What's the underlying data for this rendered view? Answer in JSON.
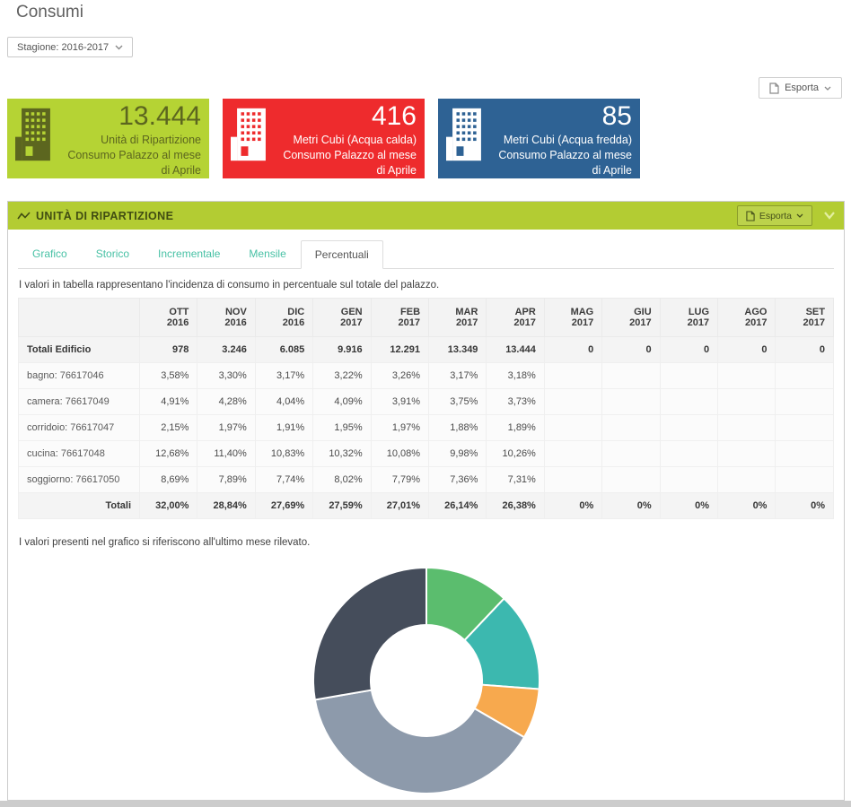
{
  "page": {
    "title": "Consumi"
  },
  "season_filter": {
    "label": "Stagione: 2016-2017"
  },
  "export_top": {
    "label": "Esporta"
  },
  "cards": [
    {
      "value": "13.444",
      "line1": "Unità di Ripartizione",
      "line2": "Consumo Palazzo al mese di Aprile",
      "bg": "#b5d334",
      "fg": "#5c661f",
      "name": "unita-di-ripartizione"
    },
    {
      "value": "416",
      "line1": "Metri Cubi (Acqua calda)",
      "line2": "Consumo Palazzo al mese di Aprile",
      "bg": "#ee2b2d",
      "fg": "#ffffff",
      "name": "metri-cubi-acqua-calda"
    },
    {
      "value": "85",
      "line1": "Metri Cubi (Acqua fredda)",
      "line2": "Consumo Palazzo al mese di Aprile",
      "bg": "#2e6294",
      "fg": "#ffffff",
      "name": "metri-cubi-acqua-fredda"
    }
  ],
  "panel": {
    "title": "UNITÀ DI RIPARTIZIONE",
    "export_label": "Esporta",
    "tabs": [
      {
        "label": "Grafico",
        "active": false
      },
      {
        "label": "Storico",
        "active": false
      },
      {
        "label": "Incrementale",
        "active": false
      },
      {
        "label": "Mensile",
        "active": false
      },
      {
        "label": "Percentuali",
        "active": true
      }
    ],
    "table_note": "I valori in tabella rappresentano l'incidenza di consumo in percentuale sul totale del palazzo.",
    "chart_note": "I valori presenti nel grafico si riferiscono all'ultimo mese rilevato."
  },
  "table": {
    "columns": [
      "",
      "OTT 2016",
      "NOV 2016",
      "DIC 2016",
      "GEN 2017",
      "FEB 2017",
      "MAR 2017",
      "APR 2017",
      "MAG 2017",
      "GIU 2017",
      "LUG 2017",
      "AGO 2017",
      "SET 2017"
    ],
    "rows": [
      {
        "label": "Totali Edificio",
        "bold": true,
        "values": [
          "978",
          "3.246",
          "6.085",
          "9.916",
          "12.291",
          "13.349",
          "13.444",
          "0",
          "0",
          "0",
          "0",
          "0"
        ]
      },
      {
        "label": "bagno: 76617046",
        "bold": false,
        "values": [
          "3,58%",
          "3,30%",
          "3,17%",
          "3,22%",
          "3,26%",
          "3,17%",
          "3,18%",
          "",
          "",
          "",
          "",
          ""
        ]
      },
      {
        "label": "camera: 76617049",
        "bold": false,
        "values": [
          "4,91%",
          "4,28%",
          "4,04%",
          "4,09%",
          "3,91%",
          "3,75%",
          "3,73%",
          "",
          "",
          "",
          "",
          ""
        ]
      },
      {
        "label": "corridoio: 76617047",
        "bold": false,
        "values": [
          "2,15%",
          "1,97%",
          "1,91%",
          "1,95%",
          "1,97%",
          "1,88%",
          "1,89%",
          "",
          "",
          "",
          "",
          ""
        ]
      },
      {
        "label": "cucina: 76617048",
        "bold": false,
        "values": [
          "12,68%",
          "11,40%",
          "10,83%",
          "10,32%",
          "10,08%",
          "9,98%",
          "10,26%",
          "",
          "",
          "",
          "",
          ""
        ]
      },
      {
        "label": "soggiorno: 76617050",
        "bold": false,
        "values": [
          "8,69%",
          "7,89%",
          "7,74%",
          "8,02%",
          "7,79%",
          "7,36%",
          "7,31%",
          "",
          "",
          "",
          "",
          ""
        ]
      },
      {
        "label": "Totali",
        "bold": true,
        "label_right": true,
        "values": [
          "32,00%",
          "28,84%",
          "27,69%",
          "27,59%",
          "27,01%",
          "26,14%",
          "26,38%",
          "0%",
          "0%",
          "0%",
          "0%",
          "0%"
        ]
      }
    ]
  },
  "chart_data": {
    "type": "pie",
    "donut": true,
    "start_angle_deg": 0,
    "direction": "clockwise",
    "segments": [
      {
        "label": "bagno: 76617046",
        "value": 3.18,
        "color": "#5bbd6e"
      },
      {
        "label": "camera: 76617049",
        "value": 3.73,
        "color": "#3cb8af"
      },
      {
        "label": "corridoio: 76617047",
        "value": 1.89,
        "color": "#f7a94e"
      },
      {
        "label": "cucina: 76617048",
        "value": 10.26,
        "color": "#8d9aab"
      },
      {
        "label": "soggiorno: 76617050",
        "value": 7.31,
        "color": "#454d5b"
      }
    ]
  },
  "colors": {
    "panel_header_green": "#b3cc33",
    "tab_teal": "#48c1a5"
  }
}
